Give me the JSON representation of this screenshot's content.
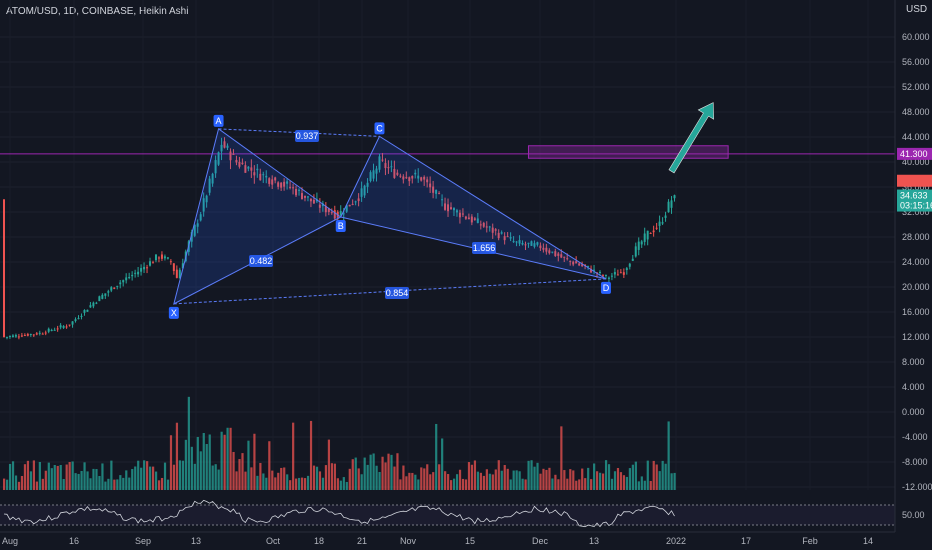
{
  "header": {
    "title": "ATOM/USD, 1D, COINBASE, Heikin Ashi",
    "currency": "USD"
  },
  "colors": {
    "background": "#131722",
    "bull": "#26a69a",
    "bear": "#ef5350",
    "pattern_fill": "#2962ff",
    "zone": "#9c27b0",
    "arrow": "#26a69a"
  },
  "chart_data": {
    "type": "candlestick",
    "price_axis": {
      "ylim": [
        -12,
        64
      ],
      "ticks": [
        -12,
        -8,
        -4,
        0,
        4,
        8,
        12,
        16,
        20,
        24,
        28,
        32,
        36,
        40,
        44,
        48,
        52,
        56,
        60
      ],
      "tick_labels": [
        "-12.000",
        "-8.000",
        "-4.000",
        "0.000",
        "4.000",
        "8.000",
        "12.000",
        "16.000",
        "20.000",
        "24.000",
        "28.000",
        "32.000",
        "36.000",
        "40.000",
        "44.000",
        "48.000",
        "52.000",
        "56.000",
        "60.000"
      ]
    },
    "time_axis": {
      "labels": [
        "Aug",
        "16",
        "Sep",
        "13",
        "Oct",
        "18",
        "21",
        "Nov",
        "15",
        "Dec",
        "13",
        "2022",
        "17",
        "Feb",
        "14"
      ]
    },
    "price_labels": {
      "resistance": "41.300",
      "current": "34.633",
      "countdown": "03:15:16",
      "oscillator_level": "50.00"
    },
    "harmonic_pattern": {
      "points": [
        {
          "name": "X",
          "day": 57,
          "price": 17.3
        },
        {
          "name": "A",
          "day": 72,
          "price": 45.3
        },
        {
          "name": "B",
          "day": 113,
          "price": 31.2
        },
        {
          "name": "C",
          "day": 126,
          "price": 44.1
        },
        {
          "name": "D",
          "day": 202,
          "price": 21.3
        }
      ],
      "ratios": [
        {
          "label": "0.937",
          "between": [
            "A",
            "C"
          ]
        },
        {
          "label": "0.482",
          "between": [
            "X",
            "B"
          ]
        },
        {
          "label": "1.656",
          "between": [
            "B",
            "D"
          ]
        },
        {
          "label": "0.854",
          "between": [
            "X",
            "D"
          ]
        }
      ]
    },
    "resistance_level": 41.3,
    "resistance_zone": {
      "day_start": 176,
      "day_end": 243,
      "price_low": 40.6,
      "price_high": 42.6
    },
    "arrow": {
      "from_day": 224,
      "from_price": 38.5,
      "to_day": 238,
      "to_price": 49.5
    }
  }
}
